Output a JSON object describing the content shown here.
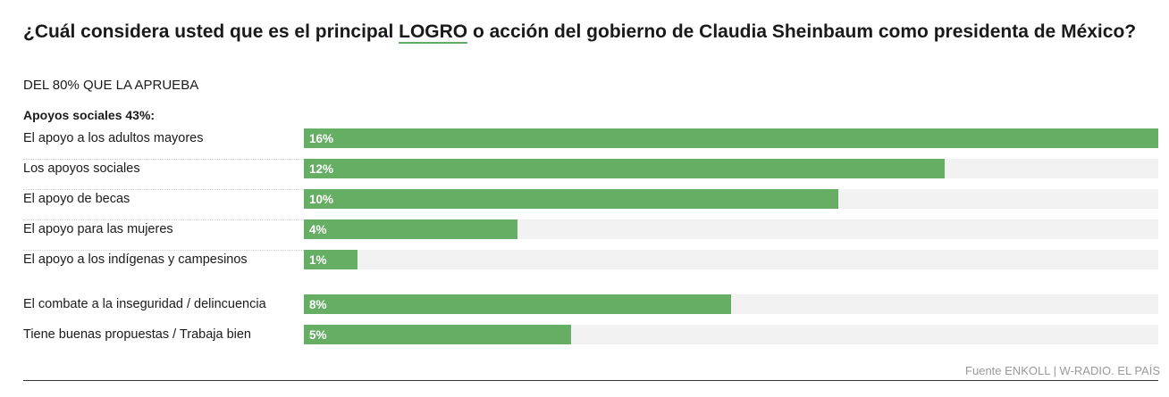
{
  "header": {
    "title_before": "¿Cuál considera usted que es el principal ",
    "title_highlight": "LOGRO",
    "title_after": " o acción del gobierno de Claudia Sheinbaum como presidenta de México?",
    "subtitle": "DEL 80% QUE LA APRUEBA"
  },
  "colors": {
    "bar": "#66ae64",
    "track": "#f2f2f2",
    "highlight_underline": "#63ab62"
  },
  "chart_data": {
    "type": "bar",
    "orientation": "horizontal",
    "group_label": "Apoyos sociales 43%:",
    "categories": [
      "El apoyo a los adultos mayores",
      "Los apoyos sociales",
      "El apoyo de becas",
      "El apoyo para las mujeres",
      "El apoyo a los indígenas y campesinos",
      "El combate a la inseguridad / delincuencia",
      "Tiene buenas propuestas / Trabaja bien"
    ],
    "values": [
      16,
      12,
      10,
      4,
      1,
      8,
      5
    ],
    "value_labels": [
      "16%",
      "12%",
      "10%",
      "4%",
      "1%",
      "8%",
      "5%"
    ],
    "xlim": [
      0,
      16
    ],
    "grid": false,
    "legend": "none"
  },
  "footer": {
    "source": "Fuente ENKOLL | W-RADIO. EL PAÍS"
  }
}
